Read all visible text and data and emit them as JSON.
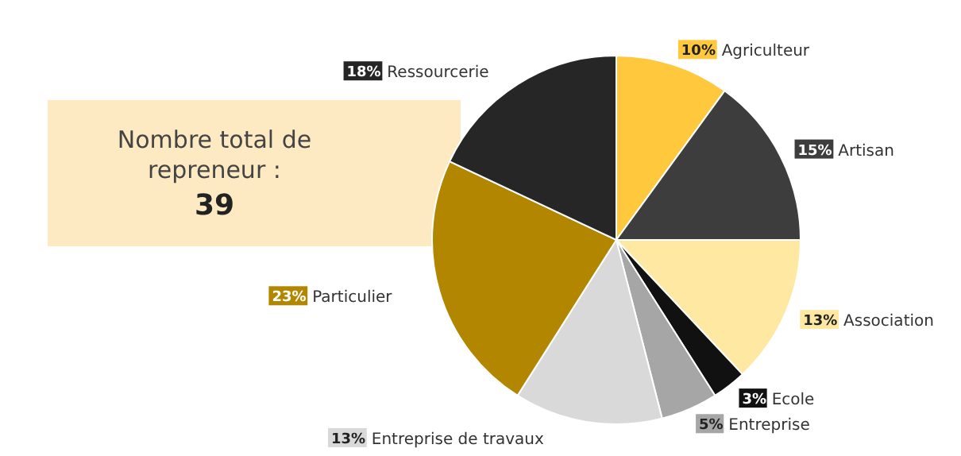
{
  "chart_data": {
    "type": "pie",
    "categories": [
      "Agriculteur",
      "Artisan",
      "Association",
      "Ecole",
      "Entreprise",
      "Entreprise de travaux",
      "Particulier",
      "Ressourcerie"
    ],
    "values": [
      10,
      15,
      13,
      3,
      5,
      13,
      23,
      18
    ],
    "value_labels": [
      "10%",
      "15%",
      "13%",
      "3%",
      "5%",
      "13%",
      "23%",
      "18%"
    ],
    "colors": [
      "#ffc83d",
      "#3d3d3d",
      "#ffe8a1",
      "#111111",
      "#a6a6a6",
      "#d9d9d9",
      "#b38600",
      "#262626"
    ],
    "annotations": [
      "Nombre total de repreneur :",
      "39"
    ],
    "legend": "right"
  }
}
